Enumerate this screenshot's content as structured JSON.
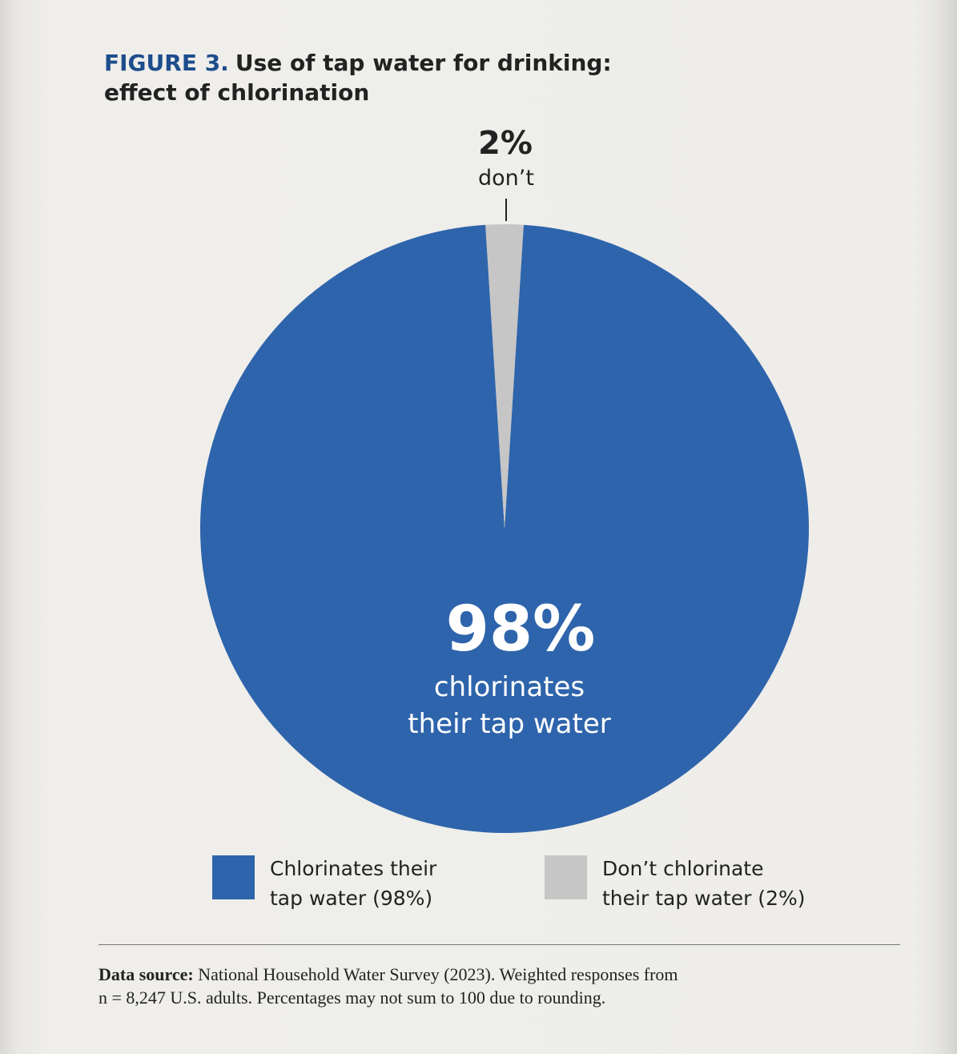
{
  "figure": {
    "label": "FIGURE 3.",
    "title": "Use of tap water for drinking: effect of chlorination"
  },
  "chart_data": {
    "type": "pie",
    "slices": [
      {
        "label": "Chlorinates their tap water (98%)",
        "value": 98,
        "color": "#2e64ab"
      },
      {
        "label": "Don’t chlorinate their tap water (2%)",
        "value": 2,
        "color": "#c6c6c6"
      }
    ],
    "annotations": {
      "main_value": "98%",
      "main_line1": "chlorinates",
      "main_line2": "their tap water",
      "minor_value": "2%",
      "minor_text": "don’t"
    },
    "legend_placement": "bottom"
  },
  "legend": {
    "items": [
      {
        "line1": "Chlorinates their",
        "line2": "tap water (98%)",
        "color": "#2e64ab"
      },
      {
        "line1": "Don’t chlorinate",
        "line2": "their tap water (2%)",
        "color": "#c6c6c6"
      }
    ]
  },
  "source": {
    "label": "Data source:",
    "line1": "National Household Water Survey (2023).    Weighted responses from",
    "line2": "n = 8,247 U.S. adults.  Percentages may not sum to 100 due to rounding."
  }
}
